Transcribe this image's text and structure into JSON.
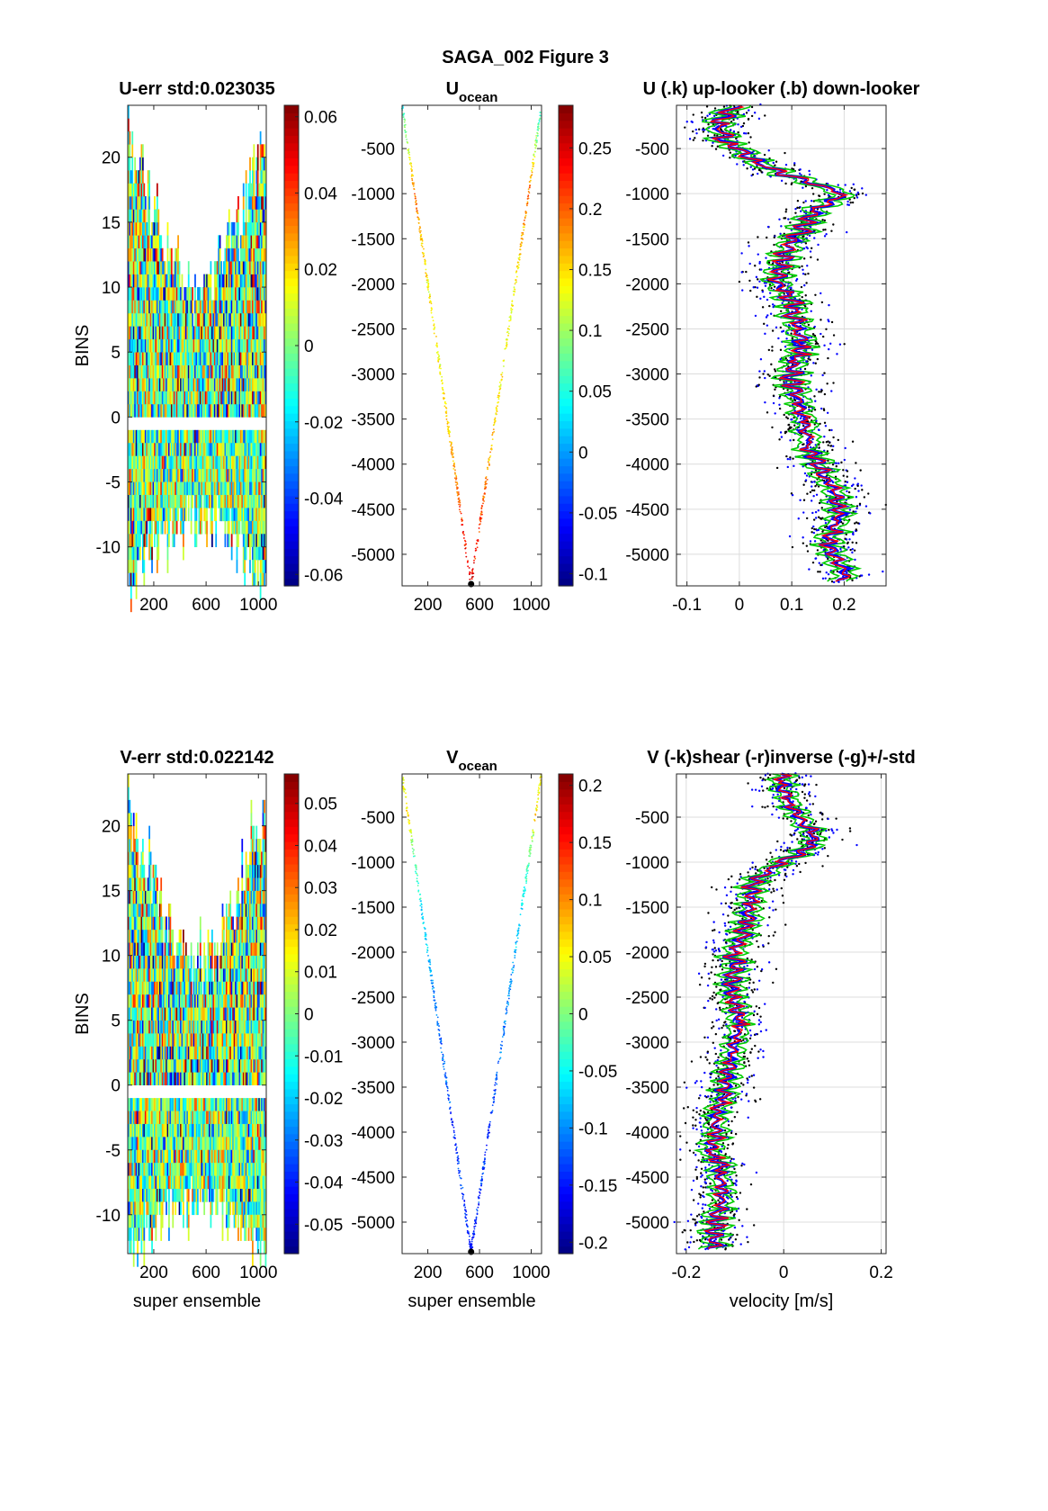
{
  "figure_title": "SAGA_002  Figure 3",
  "chart_data": [
    {
      "id": "u_err",
      "type": "heatmap",
      "title": "U-err std:0.023035",
      "xlabel": "",
      "ylabel": "BINS",
      "xlim": [
        1,
        1060
      ],
      "ylim": [
        -13,
        24
      ],
      "xticks": [
        200,
        600,
        1000
      ],
      "yticks": [
        -10,
        -5,
        0,
        5,
        10,
        15,
        20
      ],
      "colorbar": {
        "lim": [
          -0.063,
          0.063
        ],
        "ticks": [
          "0.06",
          "0.04",
          "0.02",
          "0",
          "-0.02",
          "-0.04",
          "-0.06"
        ],
        "values": [
          0.06,
          0.04,
          0.02,
          0,
          -0.02,
          -0.04,
          -0.06
        ]
      },
      "up_bins_max_edge": 22,
      "up_bins_max_center": 10,
      "down_bins_min_edge": -13,
      "down_bins_min_center": -8
    },
    {
      "id": "u_ocean",
      "type": "scatter",
      "title": "U",
      "title_sub": "ocean",
      "xlabel": "",
      "ylabel": "",
      "xlim": [
        1,
        1080
      ],
      "ylim": [
        -5350,
        -20
      ],
      "xticks": [
        200,
        600,
        1000
      ],
      "yticks": [
        -500,
        -1000,
        -1500,
        -2000,
        -2500,
        -3000,
        -3500,
        -4000,
        -4500,
        -5000
      ],
      "colorbar": {
        "lim": [
          -0.11,
          0.285
        ],
        "ticks": [
          "0.25",
          "0.2",
          "0.15",
          "0.1",
          "0.05",
          "0",
          "-0.05",
          "-0.1"
        ],
        "values": [
          0.25,
          0.2,
          0.15,
          0.1,
          0.05,
          0,
          -0.05,
          -0.1
        ]
      },
      "v_shape": {
        "top_left_x": 1,
        "top_right_x": 1080,
        "bottom_x": 535,
        "bottom_depth": -5330,
        "top_depth": -20
      },
      "color_profile": {
        "depths": [
          -20,
          -500,
          -1000,
          -1500,
          -2000,
          -2500,
          -3000,
          -3500,
          -4000,
          -4500,
          -5000,
          -5330
        ],
        "values": [
          0.05,
          0.11,
          0.2,
          0.16,
          0.14,
          0.13,
          0.14,
          0.15,
          0.17,
          0.21,
          0.23,
          0.26
        ]
      }
    },
    {
      "id": "u_profile",
      "type": "line",
      "title": "U (.k) up-looker (.b) down-looker",
      "xlabel": "",
      "ylabel": "",
      "xlim": [
        -0.12,
        0.28
      ],
      "ylim": [
        -5350,
        -20
      ],
      "xticks": [
        -0.1,
        0,
        0.1,
        0.2
      ],
      "xtick_labels": [
        "-0.1",
        "0",
        "0.1",
        "0.2"
      ],
      "yticks": [
        -500,
        -1000,
        -1500,
        -2000,
        -2500,
        -3000,
        -3500,
        -4000,
        -4500,
        -5000
      ],
      "profile": {
        "depth": [
          -20,
          -200,
          -400,
          -600,
          -800,
          -1000,
          -1200,
          -1400,
          -1600,
          -1800,
          -2000,
          -2200,
          -2400,
          -2600,
          -2800,
          -3000,
          -3200,
          -3400,
          -3600,
          -3800,
          -4000,
          -4200,
          -4400,
          -4600,
          -4800,
          -5000,
          -5200,
          -5300
        ],
        "u": [
          0.0,
          -0.04,
          -0.03,
          0.02,
          0.09,
          0.2,
          0.14,
          0.12,
          0.09,
          0.08,
          0.07,
          0.1,
          0.11,
          0.12,
          0.11,
          0.1,
          0.11,
          0.12,
          0.13,
          0.13,
          0.15,
          0.17,
          0.19,
          0.19,
          0.17,
          0.18,
          0.2,
          0.2
        ]
      },
      "series": [
        {
          "name": "up-looker",
          "color": "#000000",
          "style": "points"
        },
        {
          "name": "down-looker",
          "color": "#0000ff",
          "style": "points"
        }
      ]
    },
    {
      "id": "v_err",
      "type": "heatmap",
      "title": "V-err std:0.022142",
      "xlabel": "super ensemble",
      "ylabel": "BINS",
      "xlim": [
        1,
        1060
      ],
      "ylim": [
        -13,
        24
      ],
      "xticks": [
        200,
        600,
        1000
      ],
      "yticks": [
        -10,
        -5,
        0,
        5,
        10,
        15,
        20
      ],
      "colorbar": {
        "lim": [
          -0.057,
          0.057
        ],
        "ticks": [
          "0.05",
          "0.04",
          "0.03",
          "0.02",
          "0.01",
          "0",
          "-0.01",
          "-0.02",
          "-0.03",
          "-0.04",
          "-0.05"
        ],
        "values": [
          0.05,
          0.04,
          0.03,
          0.02,
          0.01,
          0,
          -0.01,
          -0.02,
          -0.03,
          -0.04,
          -0.05
        ]
      },
      "up_bins_max_edge": 22,
      "up_bins_max_center": 10,
      "down_bins_min_edge": -13,
      "down_bins_min_center": -9
    },
    {
      "id": "v_ocean",
      "type": "scatter",
      "title": "V",
      "title_sub": "ocean",
      "xlabel": "super ensemble",
      "ylabel": "",
      "xlim": [
        1,
        1080
      ],
      "ylim": [
        -5350,
        -20
      ],
      "xticks": [
        200,
        600,
        1000
      ],
      "yticks": [
        -500,
        -1000,
        -1500,
        -2000,
        -2500,
        -3000,
        -3500,
        -4000,
        -4500,
        -5000
      ],
      "colorbar": {
        "lim": [
          -0.21,
          0.21
        ],
        "ticks": [
          "0.2",
          "0.15",
          "0.1",
          "0.05",
          "0",
          "-0.05",
          "-0.1",
          "-0.15",
          "-0.2"
        ],
        "values": [
          0.2,
          0.15,
          0.1,
          0.05,
          0,
          -0.05,
          -0.1,
          -0.15,
          -0.2
        ]
      },
      "v_shape": {
        "top_left_x": 1,
        "top_right_x": 1080,
        "bottom_x": 535,
        "bottom_depth": -5330,
        "top_depth": -20
      },
      "color_profile": {
        "depths": [
          -20,
          -500,
          -1000,
          -1500,
          -2000,
          -2500,
          -3000,
          -3500,
          -4000,
          -4500,
          -5000,
          -5330
        ],
        "values": [
          0.04,
          0.06,
          -0.02,
          -0.06,
          -0.08,
          -0.1,
          -0.11,
          -0.12,
          -0.14,
          -0.13,
          -0.14,
          -0.15
        ]
      }
    },
    {
      "id": "v_profile",
      "type": "line",
      "title": "V (-k)shear (-r)inverse (-g)+/-std",
      "xlabel": "velocity [m/s]",
      "ylabel": "",
      "xlim": [
        -0.22,
        0.21
      ],
      "ylim": [
        -5350,
        -20
      ],
      "xticks": [
        -0.2,
        0,
        0.2
      ],
      "xtick_labels": [
        "-0.2",
        "0",
        "0.2"
      ],
      "yticks": [
        -500,
        -1000,
        -1500,
        -2000,
        -2500,
        -3000,
        -3500,
        -4000,
        -4500,
        -5000
      ],
      "profile": {
        "depth": [
          -20,
          -200,
          -400,
          -600,
          -800,
          -1000,
          -1200,
          -1400,
          -1600,
          -1800,
          -2000,
          -2200,
          -2400,
          -2600,
          -2800,
          -3000,
          -3200,
          -3400,
          -3600,
          -3800,
          -4000,
          -4200,
          -4400,
          -4600,
          -4800,
          -5000,
          -5200,
          -5300
        ],
        "u": [
          0.0,
          0.0,
          0.02,
          0.05,
          0.06,
          0.0,
          -0.06,
          -0.07,
          -0.07,
          -0.08,
          -0.1,
          -0.1,
          -0.11,
          -0.1,
          -0.09,
          -0.1,
          -0.11,
          -0.12,
          -0.12,
          -0.14,
          -0.14,
          -0.15,
          -0.13,
          -0.13,
          -0.13,
          -0.14,
          -0.14,
          -0.14
        ]
      },
      "series": [
        {
          "name": "shear",
          "color": "#000000",
          "style": "line"
        },
        {
          "name": "inverse",
          "color": "#ff0000",
          "style": "line"
        },
        {
          "name": "+/-std",
          "color": "#00cc00",
          "style": "line"
        }
      ]
    }
  ]
}
